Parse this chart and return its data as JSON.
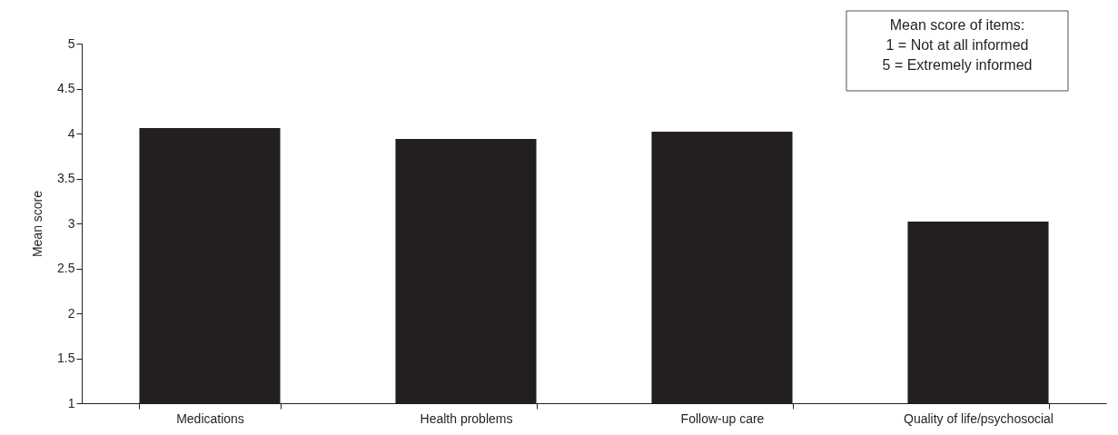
{
  "chart_data": {
    "type": "bar",
    "categories": [
      "Medications",
      "Health problems",
      "Follow-up care",
      "Quality of life/psychosocial"
    ],
    "values": [
      4.06,
      3.94,
      4.02,
      3.02
    ],
    "color": "#231f20",
    "ylabel": "Mean score",
    "ylim": [
      1,
      5
    ],
    "yticks": [
      1,
      1.5,
      2,
      2.5,
      3,
      3.5,
      4,
      4.5,
      5
    ],
    "grid": false,
    "annotations": [
      "Mean score of items:",
      "1 = Not at all informed",
      "5 = Extremely informed"
    ]
  }
}
